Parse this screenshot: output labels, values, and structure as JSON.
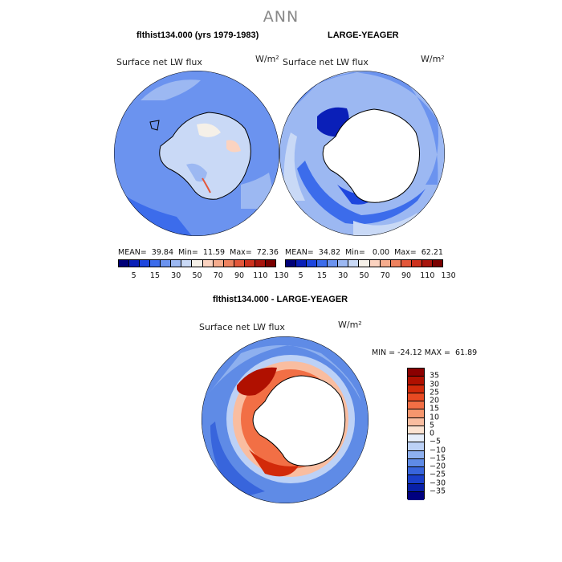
{
  "page": {
    "title": "ANN"
  },
  "panels": [
    {
      "title": "flthist134.000 (yrs 1979-1983)",
      "variable": "Surface net LW flux",
      "units": "W/m²",
      "stats": "MEAN=  39.84  Min=  11.59  Max=  72.36"
    },
    {
      "title": "LARGE-YEAGER",
      "variable": "Surface net LW flux",
      "units": "W/m²",
      "stats": "MEAN=  34.82  Min=   0.00  Max=  62.21"
    },
    {
      "title": "flthist134.000 - LARGE-YEAGER",
      "variable": "Surface net LW flux",
      "units": "W/m²",
      "stats": "MIN = -24.12 MAX =  61.89"
    }
  ],
  "colorbar_abs": {
    "labels": [
      "5",
      "15",
      "30",
      "50",
      "70",
      "90",
      "110",
      "130"
    ],
    "colors": [
      "#000078",
      "#0a1fb8",
      "#1e46de",
      "#3c6ceb",
      "#6b93ef",
      "#9cb8f2",
      "#c9d9f6",
      "#f5f0e8",
      "#fbd3c0",
      "#f6ac8d",
      "#ee825f",
      "#e3573a",
      "#cd311d",
      "#a8150d",
      "#7a0000"
    ]
  },
  "colorbar_diff": {
    "labels": [
      "35",
      "30",
      "25",
      "20",
      "15",
      "10",
      "5",
      "0",
      "−5",
      "−10",
      "−15",
      "−20",
      "−25",
      "−30",
      "−35"
    ],
    "colors": [
      "#8b0000",
      "#b01000",
      "#d22a0a",
      "#e84a22",
      "#f26f45",
      "#f6966d",
      "#f9bda0",
      "#fbe3d2",
      "#e6eefb",
      "#bcd1f6",
      "#8eb0ef",
      "#5f8be6",
      "#3865dc",
      "#1a3fca",
      "#0820a8",
      "#000080"
    ]
  }
}
